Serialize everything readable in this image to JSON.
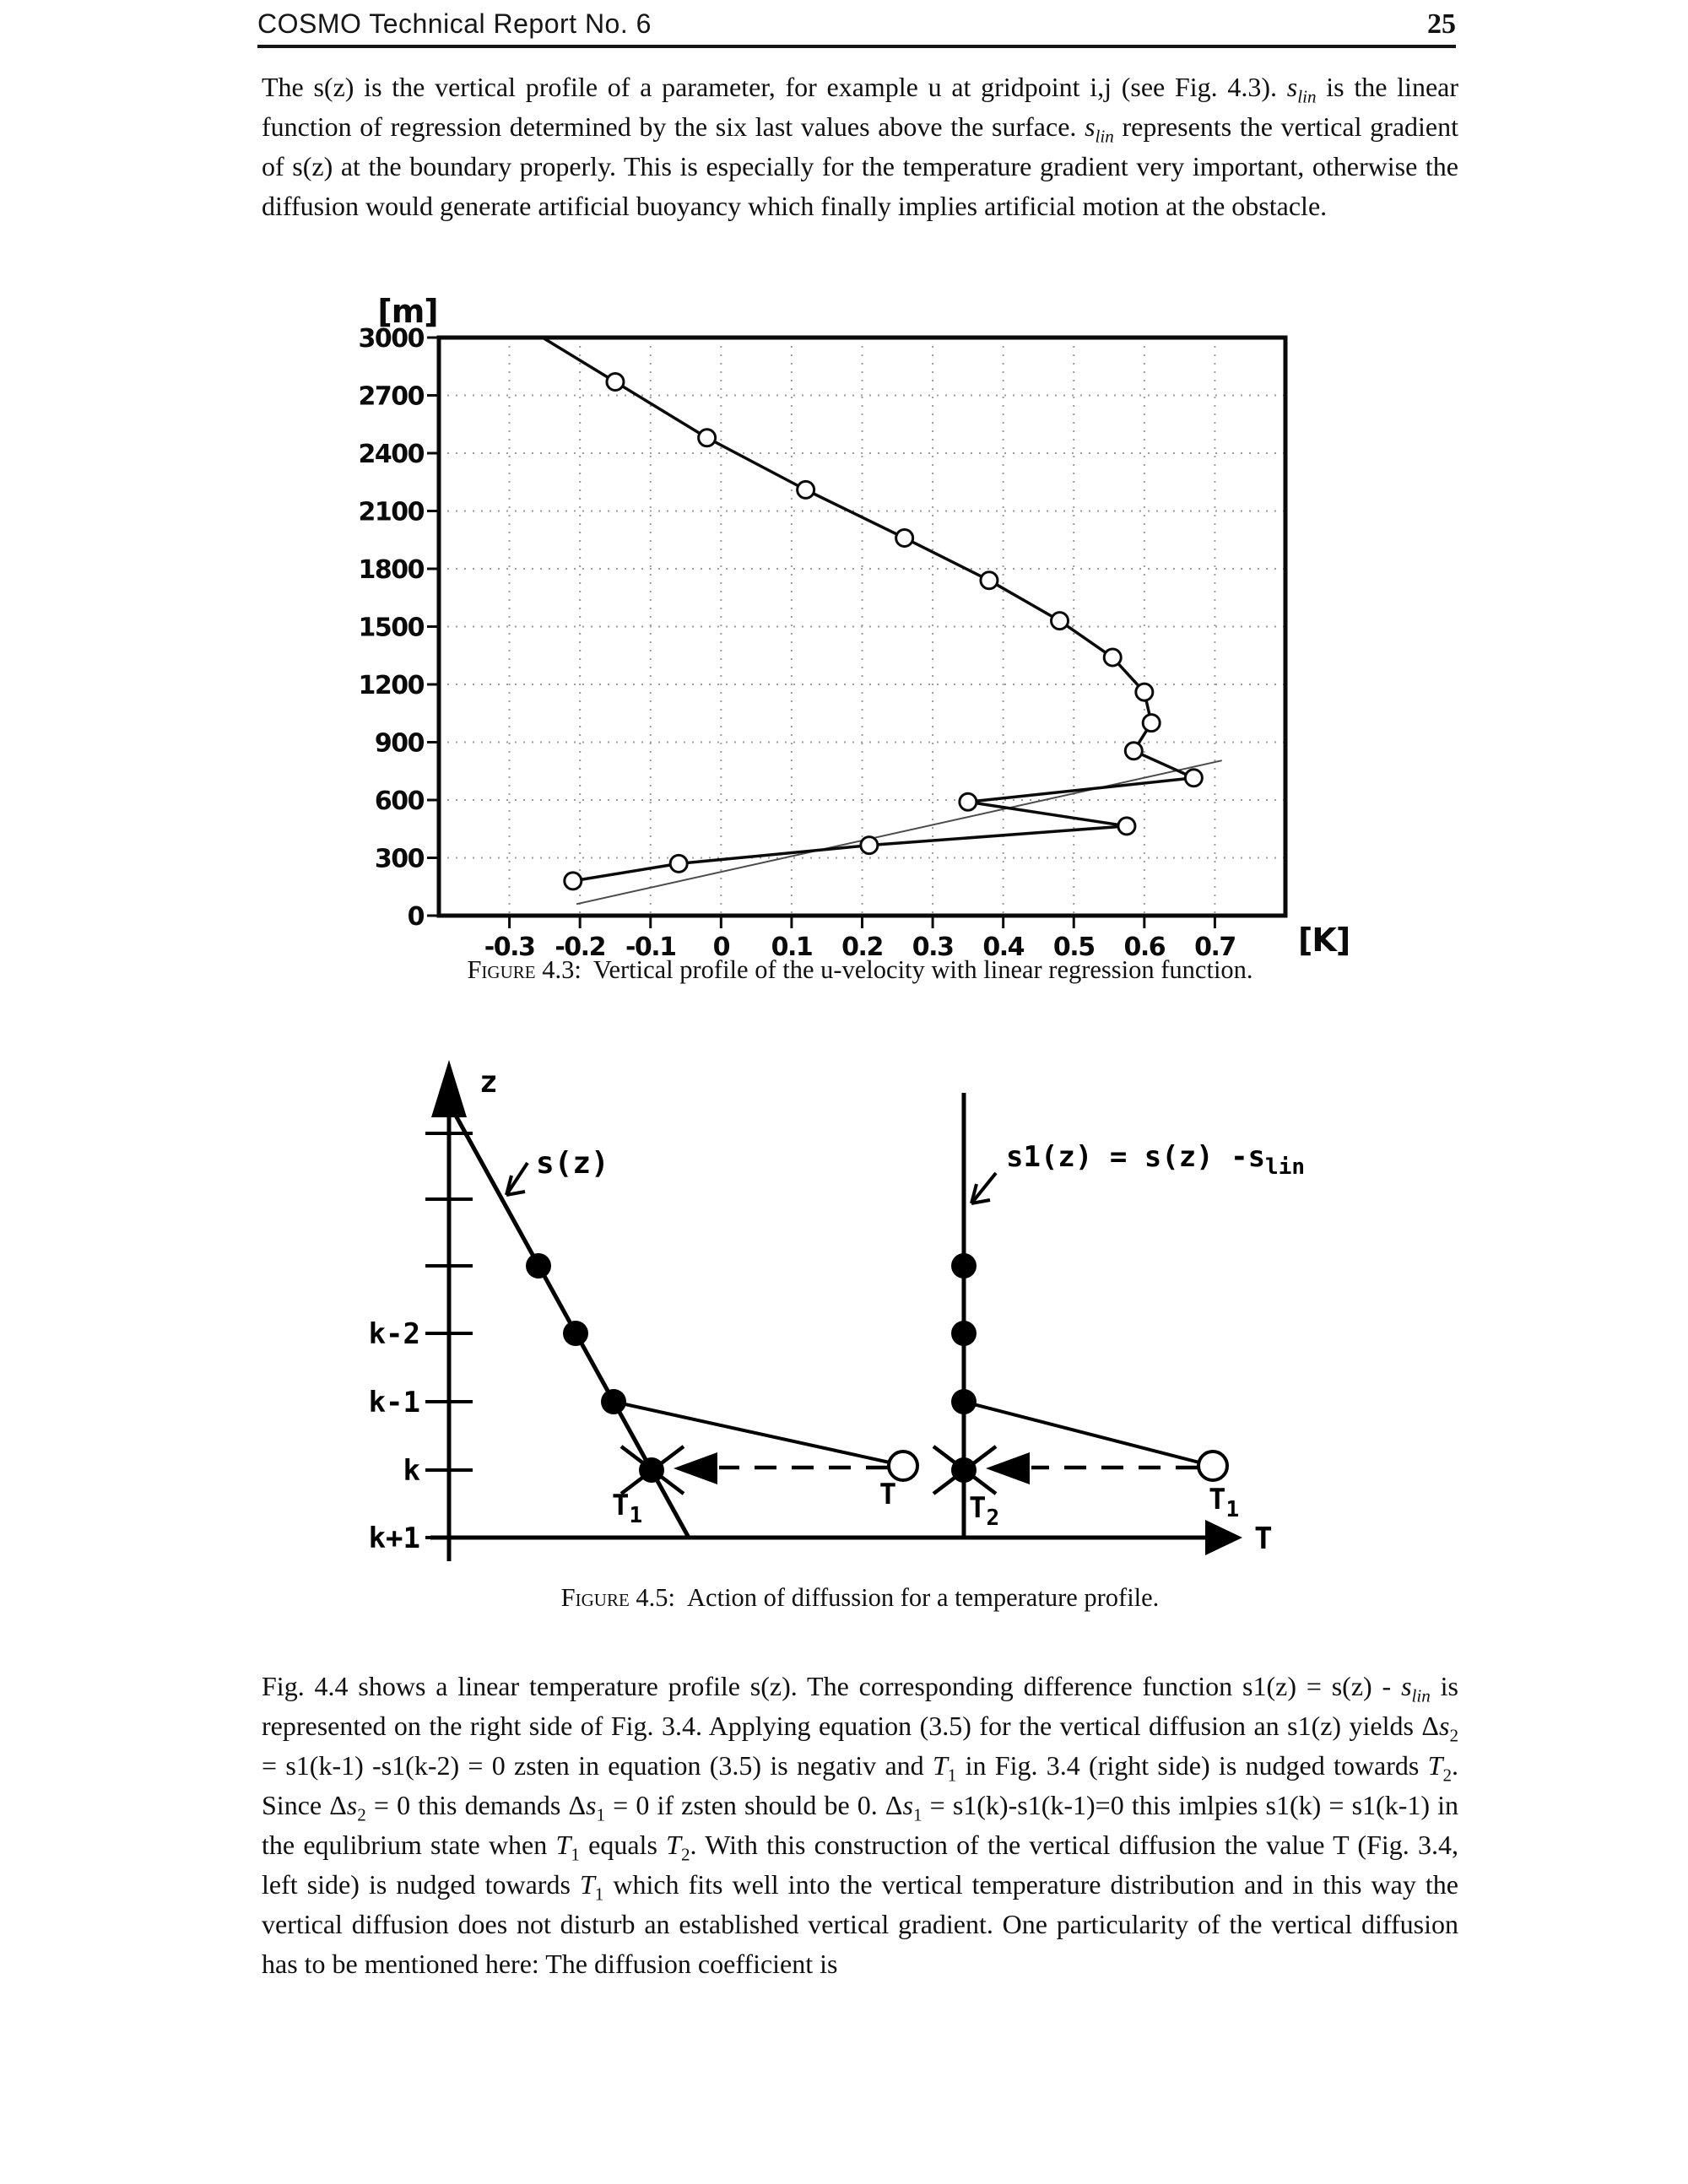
{
  "header": {
    "title": "COSMO Technical Report No. 6",
    "page_number": "25"
  },
  "paragraph1": {
    "runs": [
      {
        "t": "The s(z) is the vertical profile of a parameter, for example u at gridpoint i,j (see Fig. 4.3). "
      },
      {
        "t": "s",
        "i": true
      },
      {
        "t": "lin",
        "sub": true,
        "i": true
      },
      {
        "t": " is the linear function of regression determined by the six last values above the surface. "
      },
      {
        "t": "s",
        "i": true
      },
      {
        "t": "lin",
        "sub": true,
        "i": true
      },
      {
        "t": " represents the vertical gradient of s(z) at the boundary properly. This is especially for the temperature gradient very important, otherwise the diffusion would generate artificial buoyancy which finally implies artificial motion at the obstacle."
      }
    ]
  },
  "figure43": {
    "caption_label": "Figure 4.3:",
    "caption_text": "Vertical profile of the u-velocity with linear regression function."
  },
  "chart_data": {
    "type": "line",
    "title": "Vertical profile of the u-velocity with linear regression function",
    "xlabel": "[K]",
    "ylabel": "[m]",
    "xlim": [
      -0.4,
      0.8
    ],
    "ylim": [
      0,
      3000
    ],
    "x_ticks": [
      -0.3,
      -0.2,
      -0.1,
      0,
      0.1,
      0.2,
      0.3,
      0.4,
      0.5,
      0.6,
      0.7
    ],
    "y_ticks": [
      0,
      300,
      600,
      900,
      1200,
      1500,
      1800,
      2100,
      2400,
      2700,
      3000
    ],
    "grid": true,
    "legend_position": "none",
    "series": [
      {
        "name": "u-velocity vertical profile",
        "marker": "circle",
        "points": [
          [
            -0.21,
            180
          ],
          [
            -0.06,
            270
          ],
          [
            0.21,
            365
          ],
          [
            0.575,
            465
          ],
          [
            0.35,
            590
          ],
          [
            0.67,
            715
          ],
          [
            0.585,
            855
          ],
          [
            0.61,
            1000
          ],
          [
            0.6,
            1160
          ],
          [
            0.555,
            1340
          ],
          [
            0.48,
            1530
          ],
          [
            0.38,
            1740
          ],
          [
            0.26,
            1960
          ],
          [
            0.12,
            2210
          ],
          [
            -0.02,
            2480
          ],
          [
            -0.15,
            2770
          ]
        ],
        "boundary_point": [
          -0.253,
          3000
        ]
      },
      {
        "name": "linear regression function",
        "marker": "none",
        "points": [
          [
            -0.205,
            60
          ],
          [
            0.71,
            805
          ]
        ]
      }
    ]
  },
  "figure45": {
    "caption_label": "Figure 4.5:",
    "caption_text": "Action of diffussion for a temperature profile.",
    "z_axis_label": "z",
    "t_axis_label": "T",
    "level_labels": [
      "k-2",
      "k-1",
      "k",
      "k+1"
    ],
    "sz_label": "s(z)",
    "s1_label_main": "s1(z) = s(z) -s",
    "s1_label_sub": "lin",
    "point_labels": {
      "t_left": "T",
      "t1_left_main": "T",
      "t1_left_sub": "1",
      "t2_main": "T",
      "t2_sub": "2",
      "t1_right_main": "T",
      "t1_right_sub": "1"
    }
  },
  "paragraph2": {
    "runs": [
      {
        "t": "Fig. 4.4 shows a linear temperature profile s(z). The corresponding difference function s1(z) = s(z) - "
      },
      {
        "t": "s",
        "i": true
      },
      {
        "t": "lin",
        "sub": true,
        "i": true
      },
      {
        "t": " is represented on the right side of Fig. 3.4. Applying equation (3.5) for the vertical diffusion an s1(z) yields Δ"
      },
      {
        "t": "s",
        "i": true
      },
      {
        "t": "2",
        "sub": true
      },
      {
        "t": " = s1(k-1) -s1(k-2) = 0 zsten in equation (3.5) is negativ and "
      },
      {
        "t": "T",
        "i": true
      },
      {
        "t": "1",
        "sub": true
      },
      {
        "t": " in Fig. 3.4 (right side) is nudged towards "
      },
      {
        "t": "T",
        "i": true
      },
      {
        "t": "2",
        "sub": true
      },
      {
        "t": ". Since Δ"
      },
      {
        "t": "s",
        "i": true
      },
      {
        "t": "2",
        "sub": true
      },
      {
        "t": " = 0 this demands Δ"
      },
      {
        "t": "s",
        "i": true
      },
      {
        "t": "1",
        "sub": true
      },
      {
        "t": " = 0 if zsten should be 0. Δ"
      },
      {
        "t": "s",
        "i": true
      },
      {
        "t": "1",
        "sub": true
      },
      {
        "t": " = s1(k)-s1(k-1)=0 this imlpies s1(k) = s1(k-1) in the equlibrium state when "
      },
      {
        "t": "T",
        "i": true
      },
      {
        "t": "1",
        "sub": true
      },
      {
        "t": " equals "
      },
      {
        "t": "T",
        "i": true
      },
      {
        "t": "2",
        "sub": true
      },
      {
        "t": ". With this construction of the vertical diffusion the value T (Fig. 3.4, left side) is nudged towards "
      },
      {
        "t": "T",
        "i": true
      },
      {
        "t": "1",
        "sub": true
      },
      {
        "t": " which fits well into the vertical temperature distribution and in this way the vertical diffusion does not disturb an established vertical gradient. One particularity of the vertical diffusion has to be mentioned here: The diffusion coefficient is"
      }
    ]
  }
}
